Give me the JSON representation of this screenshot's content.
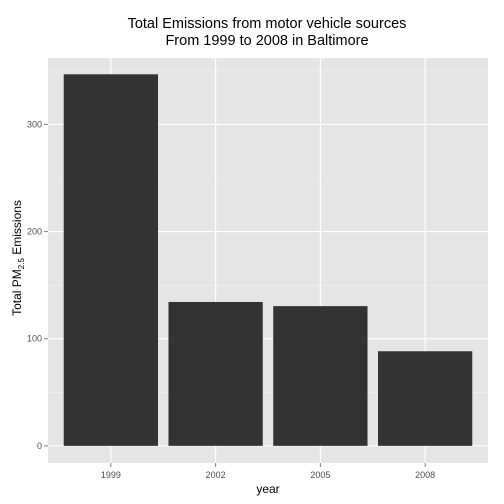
{
  "chart_data": {
    "type": "bar",
    "title_lines": [
      "Total Emissions from motor vehicle sources",
      "From 1999 to 2008 in Baltimore"
    ],
    "xlabel": "year",
    "ylabel": {
      "main": "Total PM",
      "subscript": "2.5",
      "suffix": " Emissions"
    },
    "categories": [
      "1999",
      "2002",
      "2005",
      "2008"
    ],
    "values": [
      346.8,
      134.3,
      130.4,
      88.3
    ],
    "ylim": [
      -16,
      362
    ],
    "yticks": [
      0,
      100,
      200,
      300
    ],
    "grid": true,
    "colors": {
      "panel_background": "#e5e5e5",
      "grid_major": "#ffffff",
      "grid_minor": "#f2f2f2",
      "bar_fill": "#333333",
      "tick_label": "#4d4d4d",
      "tick_mark": "#7f7f7f"
    }
  }
}
